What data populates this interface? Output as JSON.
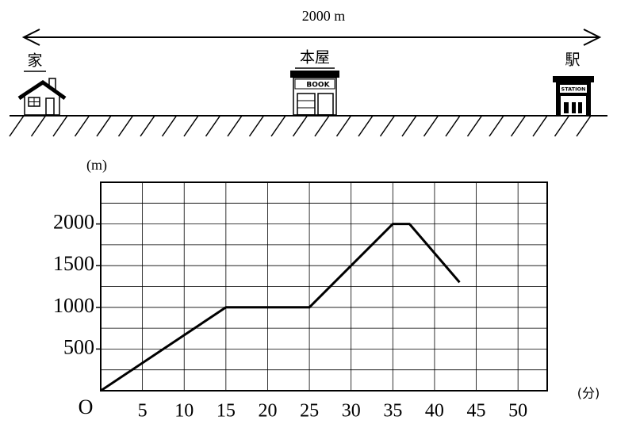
{
  "diagram": {
    "distance_label": "2000 m",
    "places": [
      "家",
      "本屋",
      "駅"
    ],
    "book_sign": "BOOK",
    "station_sign": "STATION"
  },
  "chart_data": {
    "type": "line",
    "x_label": "(分)",
    "y_label": "(m)",
    "origin_label": "O",
    "x": [
      0,
      15,
      25,
      35,
      37,
      43
    ],
    "series": [
      {
        "color": "#000000",
        "values": [
          0,
          1000,
          1000,
          2000,
          2000,
          1300
        ]
      }
    ],
    "xlim": [
      0,
      53.5
    ],
    "ylim": [
      0,
      2500
    ],
    "xticks": [
      5,
      10,
      15,
      20,
      25,
      30,
      35,
      40,
      45,
      50
    ],
    "yticks": [
      500,
      1000,
      1500,
      2000
    ],
    "ygrid": [
      250,
      500,
      750,
      1000,
      1250,
      1500,
      1750,
      2000,
      2250
    ],
    "grid": true
  }
}
